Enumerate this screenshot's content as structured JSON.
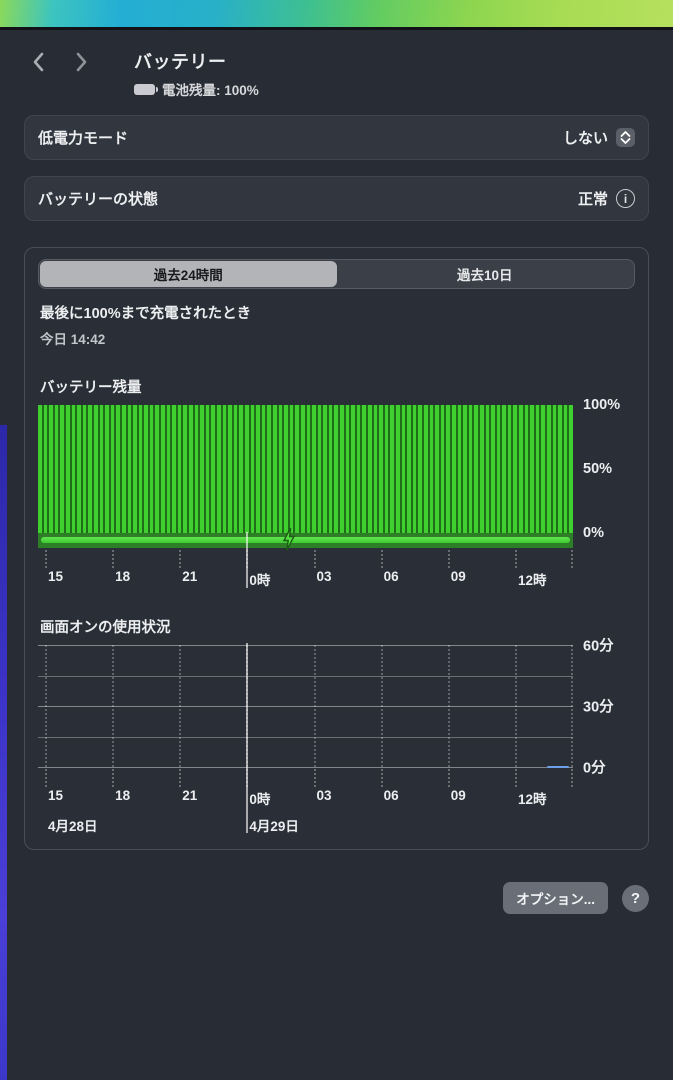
{
  "header": {
    "title": "バッテリー",
    "battery_status_label": "電池残量: 100%"
  },
  "settings_rows": {
    "low_power_mode": {
      "label": "低電力モード",
      "value": "しない"
    },
    "battery_health": {
      "label": "バッテリーの状態",
      "value": "正常"
    }
  },
  "tabs": {
    "items": [
      {
        "label": "過去24時間",
        "selected": true
      },
      {
        "label": "過去10日",
        "selected": false
      }
    ]
  },
  "last_charged": {
    "label": "最後に100%まで充電されたとき",
    "value": "今日 14:42"
  },
  "footer": {
    "options_label": "オプション...",
    "help_label": "?"
  },
  "colors": {
    "bar_green": "#3fd02f",
    "bar_gap_green": "#1f6d18",
    "charge_strip_green": "#2e7e28",
    "charge_line_green": "#52de45",
    "usage_marker_blue": "#6ca1e8",
    "selected_segment": "#b2b4b8",
    "window_bg": "#282c34"
  },
  "chart_data": [
    {
      "type": "bar",
      "title": "バッテリー残量",
      "ylim": [
        0,
        100
      ],
      "y_tick_labels": [
        "100%",
        "50%",
        "0%"
      ],
      "x_tick_labels": [
        "15",
        "18",
        "21",
        "0時",
        "03",
        "06",
        "09",
        "12時"
      ],
      "values_percent_hourly": [
        100,
        100,
        100,
        100,
        100,
        100,
        100,
        100,
        100,
        100,
        100,
        100,
        100,
        100,
        100,
        100,
        100,
        100,
        100,
        100,
        100,
        100,
        100,
        100
      ],
      "bars_per_hour": 4,
      "charging_full_period": true,
      "bolt_position_fraction": 0.47,
      "midnight_tick_index": 3,
      "grid": false,
      "legend": false
    },
    {
      "type": "bar",
      "title": "画面オンの使用状況",
      "ylim_minutes": [
        0,
        60
      ],
      "y_tick_labels": [
        "60分",
        "30分",
        "0分"
      ],
      "x_tick_labels": [
        "15",
        "18",
        "21",
        "0時",
        "03",
        "06",
        "09",
        "12時"
      ],
      "values_minutes_hourly": [
        0,
        0,
        0,
        0,
        0,
        0,
        0,
        0,
        0,
        0,
        0,
        0,
        0,
        0,
        0,
        0,
        0,
        0,
        0,
        0,
        0,
        0,
        0,
        0
      ],
      "recent_usage_marker": {
        "minutes": 1,
        "color": "#6ca1e8"
      },
      "date_labels": [
        {
          "label": "4月28日",
          "tick_index": 0
        },
        {
          "label": "4月29日",
          "tick_index": 3
        }
      ],
      "midnight_tick_index": 3,
      "grid": true,
      "legend": false
    }
  ]
}
